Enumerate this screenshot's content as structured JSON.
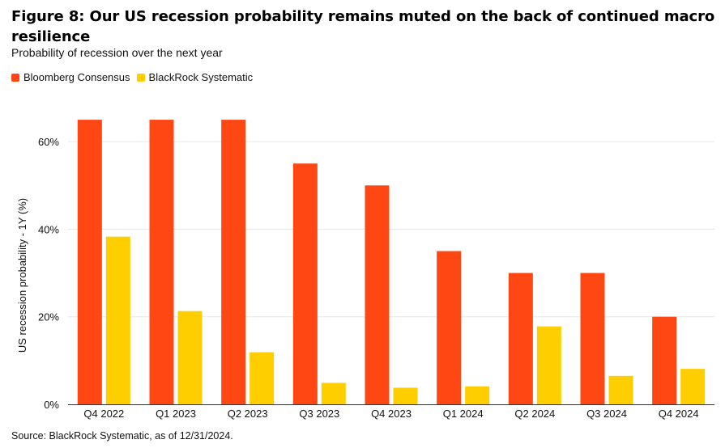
{
  "title": "Figure 8: Our US recession probability remains muted on the back of continued macro resilience",
  "subtitle": "Probability of recession over the next year",
  "source": "Source: BlackRock Systematic, as of 12/31/2024.",
  "colors": {
    "series1": "#FF4713",
    "series2": "#FFCE00",
    "grid": "#e6e6e6",
    "axis": "#333333"
  },
  "chart_data": {
    "type": "bar",
    "categories": [
      "Q4 2022",
      "Q1 2023",
      "Q2 2023",
      "Q3 2023",
      "Q4 2023",
      "Q1 2024",
      "Q2 2024",
      "Q3 2024",
      "Q4 2024"
    ],
    "series": [
      {
        "name": "Bloomberg Consensus",
        "values": [
          65,
          65,
          65,
          55,
          50,
          35,
          30,
          30,
          20
        ]
      },
      {
        "name": "BlackRock Systematic",
        "values": [
          38.3,
          21.3,
          11.9,
          4.9,
          3.8,
          4.1,
          17.8,
          6.5,
          8.1
        ]
      }
    ],
    "ylabel": "US recession probability - 1Y (%)",
    "xlabel": "",
    "ylim": [
      0,
      70
    ],
    "yticks": [
      0,
      20,
      40,
      60
    ],
    "ytick_labels": [
      "0%",
      "20%",
      "40%",
      "60%"
    ],
    "grid": true,
    "legend_position": "top-left"
  }
}
